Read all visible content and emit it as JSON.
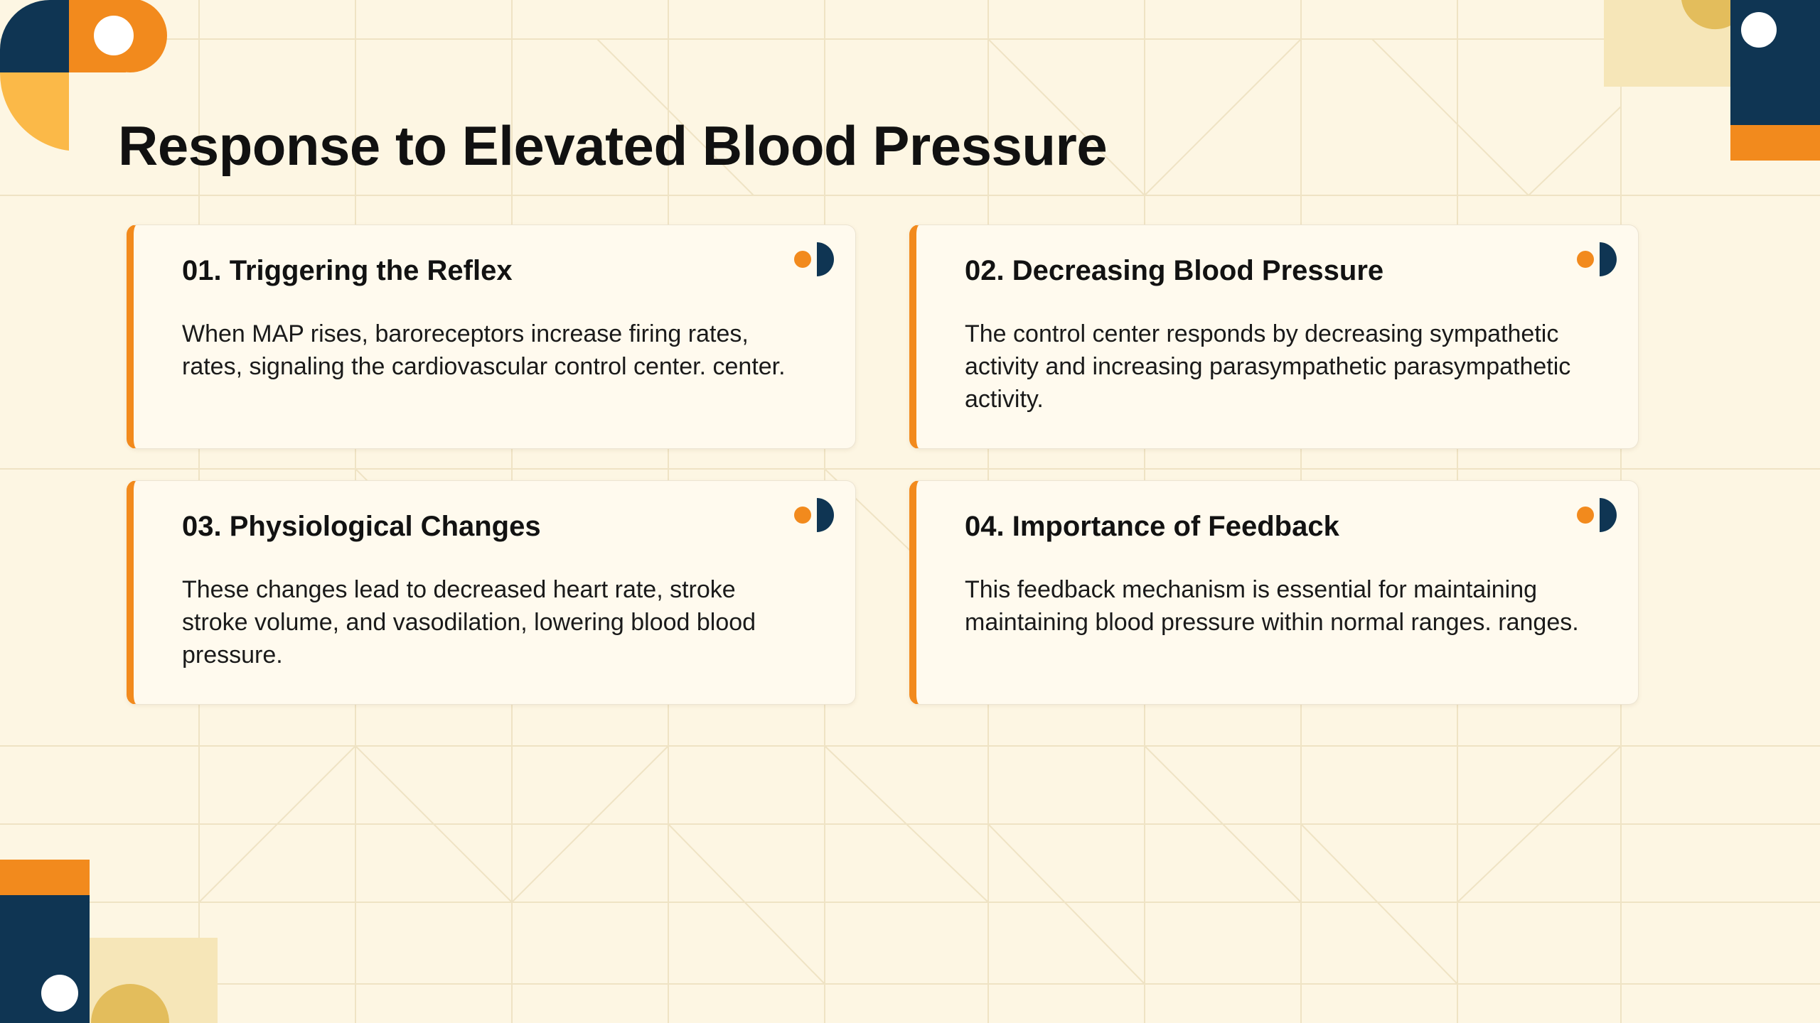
{
  "slide": {
    "title": "Response to Elevated Blood Pressure"
  },
  "cards": [
    {
      "title": "01. Triggering the Reflex",
      "body": "When MAP rises, baroreceptors increase firing rates, rates, signaling the cardiovascular control center. center."
    },
    {
      "title": "02. Decreasing Blood Pressure",
      "body": "The control center responds by decreasing sympathetic activity and increasing parasympathetic parasympathetic activity."
    },
    {
      "title": "03. Physiological Changes",
      "body": "These changes lead to decreased heart rate, stroke stroke volume, and vasodilation, lowering blood blood pressure."
    },
    {
      "title": "04. Importance of Feedback",
      "body": "This feedback mechanism is essential for maintaining maintaining blood pressure within normal ranges. ranges."
    }
  ],
  "icons": {
    "card_marker": "half-circle-dot-icon",
    "decorations": [
      "geometric-corner-top-left",
      "geometric-corner-top-right",
      "geometric-corner-bottom-left"
    ]
  },
  "colors": {
    "background": "#fdf6e3",
    "accent_orange": "#f28a1d",
    "navy": "#0f3553",
    "mustard": "#e3bd5c",
    "light_orange": "#fbb948",
    "card_background": "#fffaee",
    "pale_tile": "#f6e6b8"
  }
}
